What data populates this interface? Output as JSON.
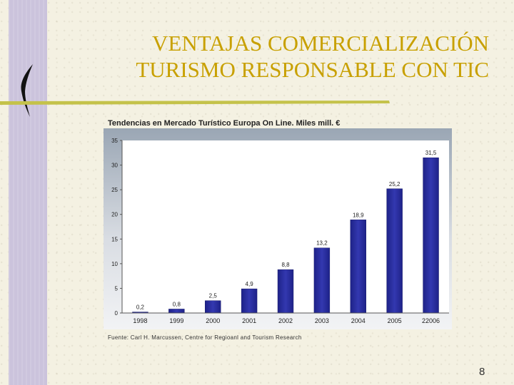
{
  "slide": {
    "title_line1": "VENTAJAS COMERCIALIZACIÓN",
    "title_line2": "TURISMO RESPONSABLE CON TIC",
    "page_number": "8",
    "accent_color": "#c8a000",
    "rule_color": "#c4c24a"
  },
  "chart_data": {
    "type": "bar",
    "title": "Tendencias en Mercado Turístico Europa On Line. Miles mill. €",
    "source": "Fuente: Carl H. Marcussen, Centre for Regioanl and Tourism Research",
    "categories": [
      "1998",
      "1999",
      "2000",
      "2001",
      "2002",
      "2003",
      "2004",
      "2005",
      "22006"
    ],
    "values": [
      0.2,
      0.8,
      2.5,
      4.9,
      8.8,
      13.2,
      18.9,
      25.2,
      31.5
    ],
    "value_labels": [
      "0,2",
      "0,8",
      "2,5",
      "4,9",
      "8,8",
      "13,2",
      "18,9",
      "25,2",
      "31,5"
    ],
    "ylim": [
      0,
      35
    ],
    "yticks": [
      0,
      5,
      10,
      15,
      20,
      25,
      30,
      35
    ],
    "xlabel": "",
    "ylabel": "",
    "grid": false,
    "bar_color": "#2a2ea0"
  }
}
